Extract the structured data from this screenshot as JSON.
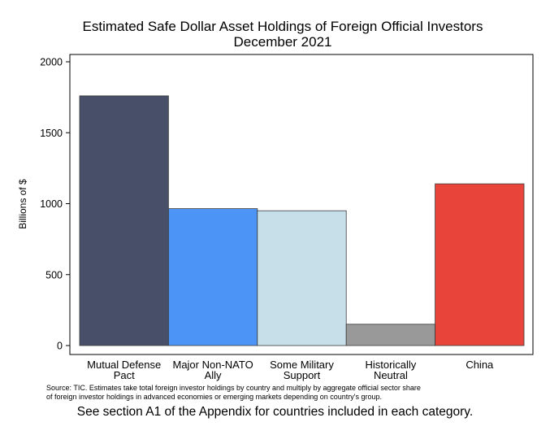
{
  "chart_data": {
    "type": "bar",
    "title": [
      "Estimated Safe Dollar Asset Holdings of Foreign Official Investors",
      "December 2021"
    ],
    "ylabel": "Billions of $",
    "xlabel": "",
    "ylim": [
      0,
      2000
    ],
    "yticks": [
      "0",
      "500",
      "1000",
      "1500",
      "2000"
    ],
    "categories": [
      [
        "Mutual Defense",
        "Pact"
      ],
      [
        "Major Non-NATO",
        "Ally"
      ],
      [
        "Some Military",
        "Support"
      ],
      [
        "Historically",
        "Neutral"
      ],
      [
        "China"
      ]
    ],
    "values": [
      1760,
      965,
      950,
      150,
      1140
    ],
    "colors": [
      "#475068",
      "#4d94f7",
      "#c7dfe9",
      "#999999",
      "#e8443a"
    ],
    "grid": false,
    "legend": "none"
  },
  "source_note": [
    "Source: TIC.  Estimates take total foreign investor holdings by country and multiply by aggregate official sector share",
    "of foreign investor holdings in advanced economies or emerging markets depending on country's group."
  ],
  "footer_note": "See section A1 of the Appendix for countries included in each category."
}
